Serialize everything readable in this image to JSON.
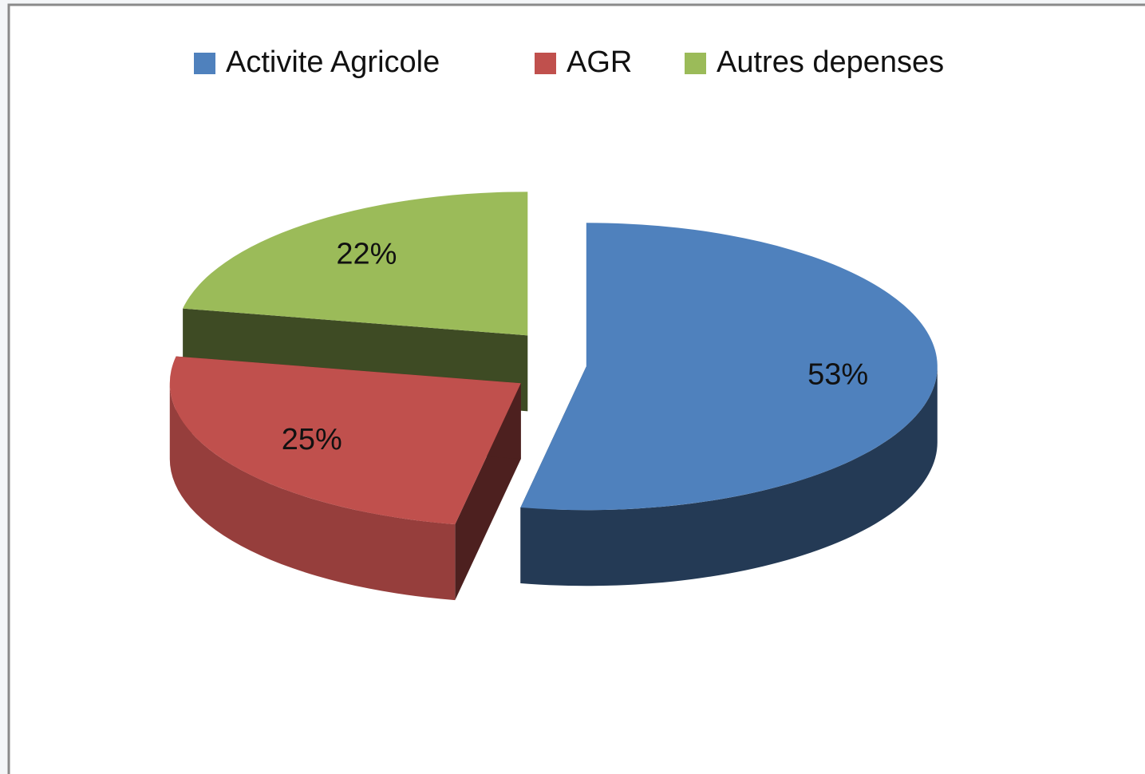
{
  "chart_data": {
    "type": "pie3d",
    "categories": [
      "Activite Agricole",
      "AGR",
      "Autres depenses"
    ],
    "series": [
      {
        "values": [
          53,
          25,
          22
        ],
        "value_labels": [
          "53%",
          "25%",
          "22%"
        ],
        "colors": [
          "#4f81bd",
          "#c0504d",
          "#9bbb59"
        ]
      }
    ],
    "legend": "top",
    "exploded": true
  }
}
